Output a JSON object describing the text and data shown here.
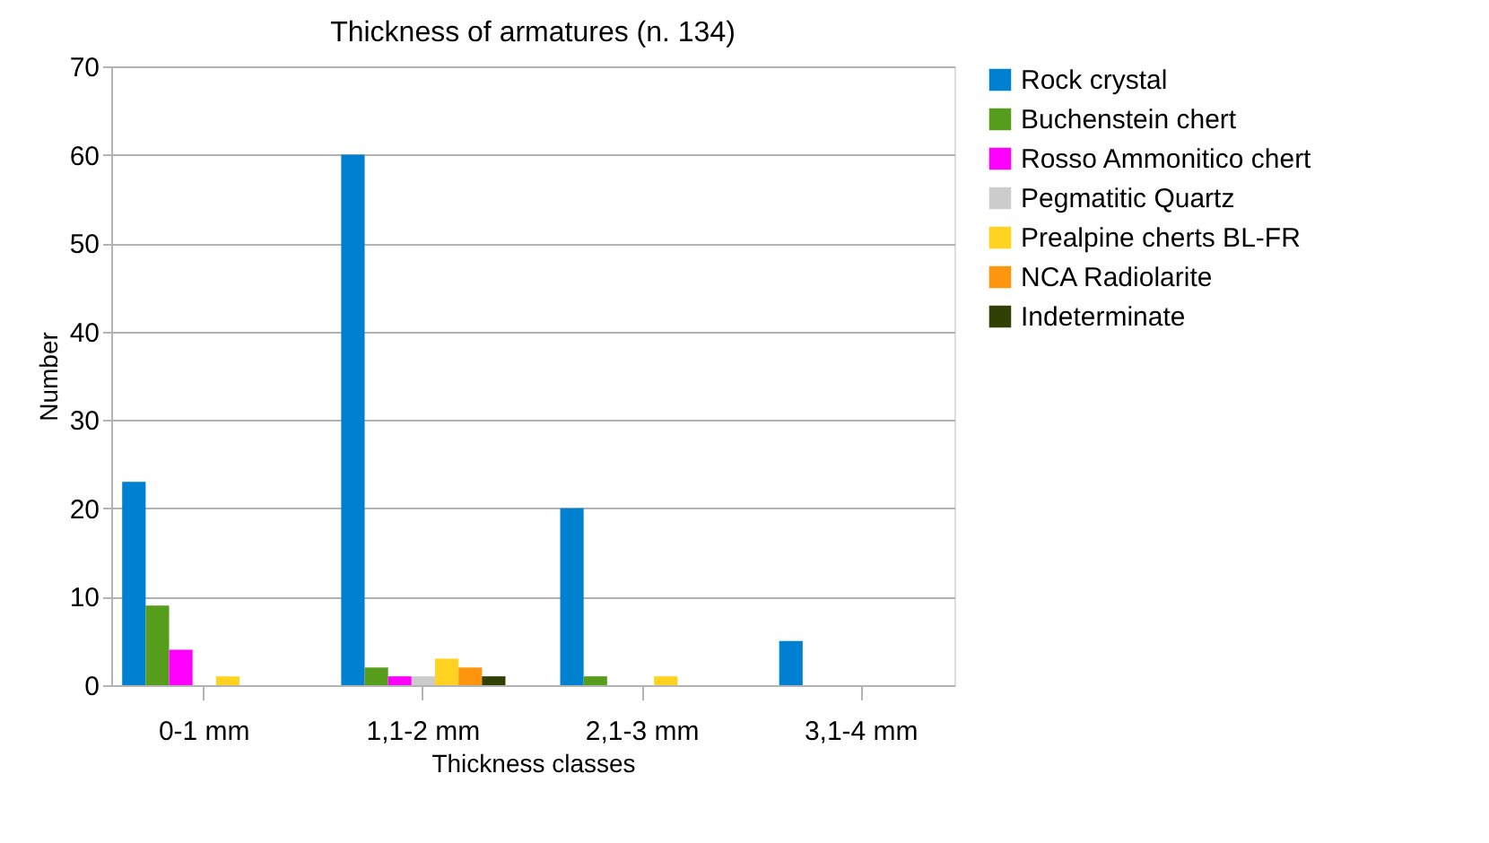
{
  "chart_data": {
    "type": "bar",
    "title": "Thickness of armatures (n. 134)",
    "xlabel": "Thickness classes",
    "ylabel": "Number",
    "categories": [
      "0-1 mm",
      "1,1-2 mm",
      "2,1-3 mm",
      "3,1-4 mm"
    ],
    "series": [
      {
        "name": "Rock crystal",
        "color": "#0080d0",
        "values": [
          23,
          60,
          20,
          5
        ]
      },
      {
        "name": "Buchenstein chert",
        "color": "#579d1c",
        "values": [
          9,
          2,
          1,
          0
        ]
      },
      {
        "name": "Rosso Ammonitico chert",
        "color": "#ff00ff",
        "values": [
          4,
          1,
          0,
          0
        ]
      },
      {
        "name": "Pegmatitic Quartz",
        "color": "#cccccc",
        "values": [
          0,
          1,
          0,
          0
        ]
      },
      {
        "name": "Prealpine cherts BL-FR",
        "color": "#ffd320",
        "values": [
          1,
          3,
          1,
          0
        ]
      },
      {
        "name": "NCA Radiolarite",
        "color": "#ff950e",
        "values": [
          0,
          2,
          0,
          0
        ]
      },
      {
        "name": "Indeterminate",
        "color": "#314004",
        "values": [
          0,
          1,
          0,
          0
        ]
      }
    ],
    "ylim": [
      0,
      70
    ],
    "yticks": [
      0,
      10,
      20,
      30,
      40,
      50,
      60,
      70
    ],
    "grid": "y",
    "legend": "right"
  }
}
